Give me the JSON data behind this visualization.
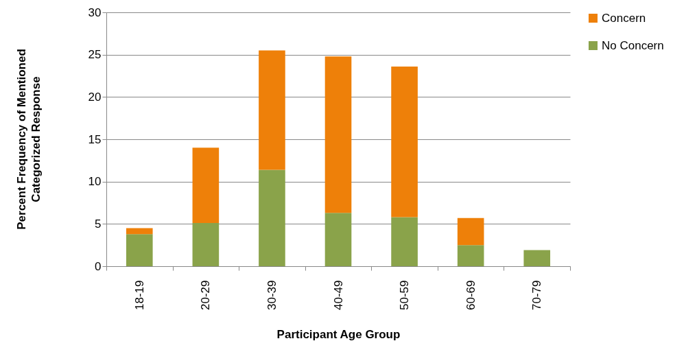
{
  "chart_data": {
    "type": "bar",
    "stacked": true,
    "xlabel": "Participant Age Group",
    "ylabel": "Percent Frequency of Mentioned\nCategorized Response",
    "categories": [
      "18-19",
      "20-29",
      "30-39",
      "40-49",
      "50-59",
      "60-69",
      "70-79"
    ],
    "series": [
      {
        "name": "No Concern",
        "color": "#8aa34a",
        "values": [
          3.8,
          5.1,
          11.4,
          6.3,
          5.8,
          2.5,
          1.9
        ]
      },
      {
        "name": "Concern",
        "color": "#ee8009",
        "values": [
          0.7,
          8.9,
          14.1,
          18.5,
          17.8,
          3.2,
          null
        ]
      }
    ],
    "ylim": [
      0,
      30
    ],
    "yticks": [
      0,
      5,
      10,
      15,
      20,
      25,
      30
    ],
    "grid": "y",
    "legend": "right"
  }
}
